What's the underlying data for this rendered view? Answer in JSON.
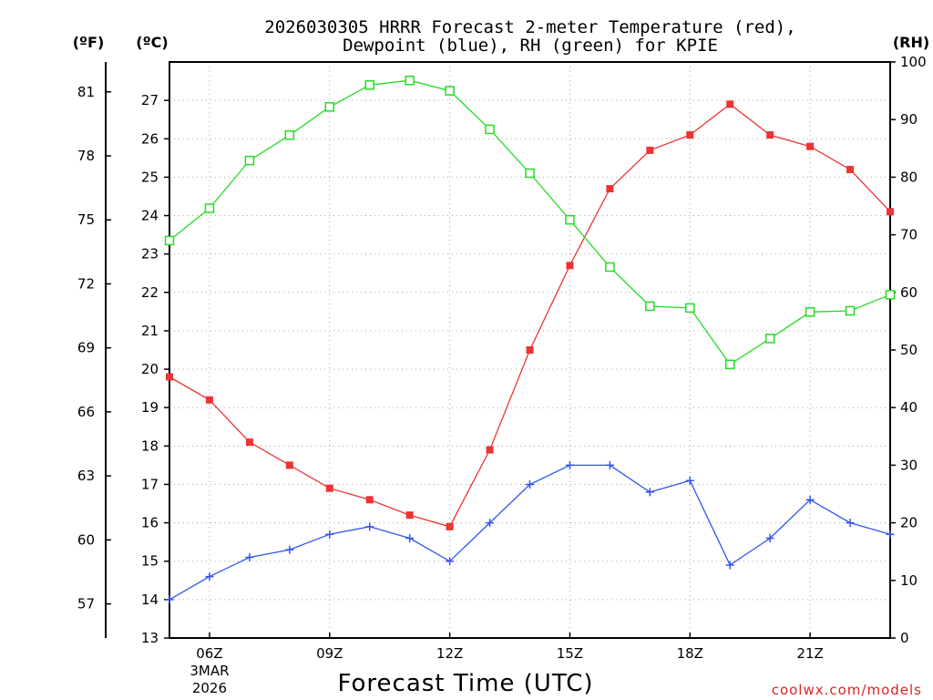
{
  "chart_data": {
    "type": "line",
    "title_lines": [
      "2026030305 HRRR Forecast 2-meter Temperature (red),",
      "Dewpoint (blue), RH (green) for KPIE"
    ],
    "xlabel": "Forecast Time (UTC)",
    "credit": "coolwx.com/models",
    "units": {
      "fahrenheit": "(ºF)",
      "celsius": "(ºC)",
      "rh": "(RH)"
    },
    "x_ticks": [
      {
        "x": 6,
        "label": "06Z",
        "sub1": "3MAR",
        "sub2": "2026"
      },
      {
        "x": 9,
        "label": "09Z"
      },
      {
        "x": 12,
        "label": "12Z"
      },
      {
        "x": 15,
        "label": "15Z"
      },
      {
        "x": 18,
        "label": "18Z"
      },
      {
        "x": 21,
        "label": "21Z"
      }
    ],
    "xlim": [
      5,
      23
    ],
    "celsius_ylim": [
      13,
      28
    ],
    "celsius_ticks": [
      13,
      14,
      15,
      16,
      17,
      18,
      19,
      20,
      21,
      22,
      23,
      24,
      25,
      26,
      27
    ],
    "fahrenheit_ticks": [
      57,
      60,
      63,
      66,
      69,
      72,
      75,
      78,
      81
    ],
    "rh_ylim": [
      0,
      100
    ],
    "rh_ticks": [
      0,
      10,
      20,
      30,
      40,
      50,
      60,
      70,
      80,
      90,
      100
    ],
    "x": [
      5,
      6,
      7,
      8,
      9,
      10,
      11,
      12,
      13,
      14,
      15,
      16,
      17,
      18,
      19,
      20,
      21,
      22,
      23
    ],
    "series": [
      {
        "name": "Temperature (red)",
        "axis": "celsius",
        "color": "#ee3333",
        "marker": "filled-square",
        "values": [
          19.8,
          19.2,
          18.1,
          17.5,
          16.9,
          16.6,
          16.2,
          15.9,
          17.9,
          20.5,
          22.7,
          24.7,
          25.7,
          26.1,
          26.9,
          26.1,
          25.8,
          25.2,
          24.1
        ]
      },
      {
        "name": "Dewpoint (blue)",
        "axis": "celsius",
        "color": "#3355ee",
        "marker": "plus",
        "values": [
          14.0,
          14.6,
          15.1,
          15.3,
          15.7,
          15.9,
          15.6,
          15.0,
          16.0,
          17.0,
          17.5,
          17.5,
          16.8,
          17.1,
          14.9,
          15.6,
          16.6,
          16.0,
          15.7
        ]
      },
      {
        "name": "RH (green)",
        "axis": "rh",
        "color": "#22dd22",
        "marker": "open-square",
        "values": [
          69.0,
          74.6,
          82.9,
          87.3,
          92.2,
          96.0,
          96.8,
          95.0,
          88.3,
          80.7,
          72.6,
          64.4,
          57.6,
          57.3,
          47.5,
          52.0,
          56.6,
          56.8,
          59.6
        ]
      }
    ],
    "grid": true
  }
}
